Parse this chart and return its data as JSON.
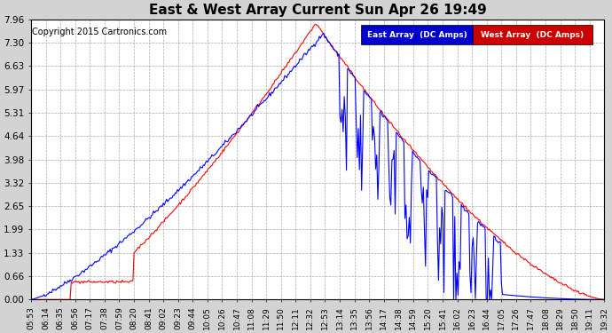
{
  "title": "East & West Array Current Sun Apr 26 19:49",
  "copyright": "Copyright 2015 Cartronics.com",
  "legend_east": "East Array  (DC Amps)",
  "legend_west": "West Array  (DC Amps)",
  "east_color": "#0000ff",
  "west_color": "#ff0000",
  "legend_east_bg": "#0000cc",
  "legend_west_bg": "#cc0000",
  "background_color": "#d3d3d3",
  "plot_bg_color": "#ffffff",
  "grid_color": "#aaaaaa",
  "ylim": [
    0,
    7.96
  ],
  "yticks": [
    0.0,
    0.66,
    1.33,
    1.99,
    2.65,
    3.32,
    3.98,
    4.64,
    5.31,
    5.97,
    6.63,
    7.3,
    7.96
  ],
  "xtick_labels": [
    "05:53",
    "06:14",
    "06:35",
    "06:56",
    "07:17",
    "07:38",
    "07:59",
    "08:20",
    "08:41",
    "09:02",
    "09:23",
    "09:44",
    "10:05",
    "10:26",
    "10:47",
    "11:08",
    "11:29",
    "11:50",
    "12:11",
    "12:32",
    "12:53",
    "13:14",
    "13:35",
    "13:56",
    "14:17",
    "14:38",
    "14:59",
    "15:20",
    "15:41",
    "16:02",
    "16:23",
    "16:44",
    "17:05",
    "17:26",
    "17:47",
    "18:08",
    "18:29",
    "18:50",
    "19:11",
    "19:32"
  ],
  "figsize": [
    6.9,
    3.75
  ],
  "dpi": 100
}
